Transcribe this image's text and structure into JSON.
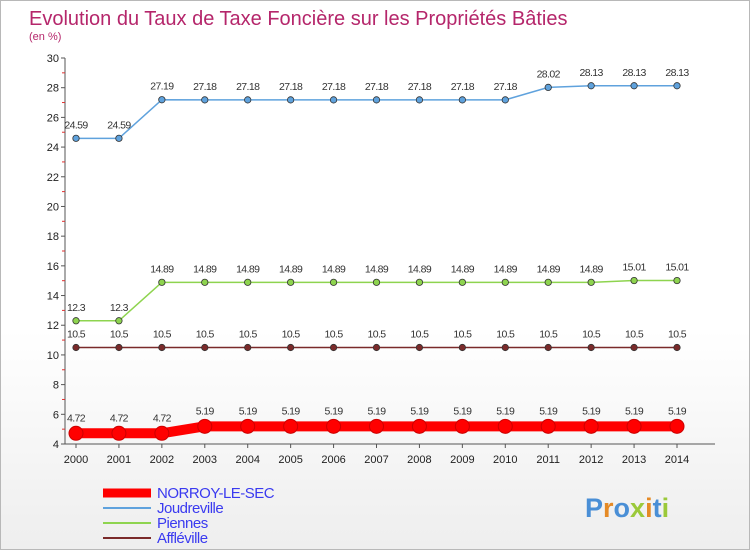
{
  "chart_data": {
    "type": "line",
    "title": "Evolution du Taux de Taxe Foncière sur les Propriétés Bâties",
    "subtitle": "(en %)",
    "xlabel": "",
    "ylabel": "(en %)",
    "ylim": [
      4,
      30
    ],
    "yticks": [
      4,
      6,
      8,
      10,
      12,
      14,
      16,
      18,
      20,
      22,
      24,
      26,
      28,
      30
    ],
    "categories": [
      "2000",
      "2001",
      "2002",
      "2003",
      "2004",
      "2005",
      "2006",
      "2007",
      "2008",
      "2009",
      "2010",
      "2011",
      "2012",
      "2013",
      "2014"
    ],
    "series": [
      {
        "name": "NORROY-LE-SEC",
        "color": "#ff0000",
        "values": [
          4.72,
          4.72,
          4.72,
          5.19,
          5.19,
          5.19,
          5.19,
          5.19,
          5.19,
          5.19,
          5.19,
          5.19,
          5.19,
          5.19,
          5.19
        ],
        "labels": [
          "4.72",
          "4.72",
          "4.72",
          "5.19",
          "5.19",
          "5.19",
          "5.19",
          "5.19",
          "5.19",
          "5.19",
          "5.19",
          "5.19",
          "5.19",
          "5.19",
          "5.19"
        ]
      },
      {
        "name": "Joudreville",
        "color": "#5fa2dd",
        "values": [
          24.59,
          24.59,
          27.19,
          27.18,
          27.18,
          27.18,
          27.18,
          27.18,
          27.18,
          27.18,
          27.18,
          28.02,
          28.13,
          28.13,
          28.13
        ],
        "labels": [
          "24.59",
          "24.59",
          "27.19",
          "27.18",
          "27.18",
          "27.18",
          "27.18",
          "27.18",
          "27.18",
          "27.18",
          "27.18",
          "28.02",
          "28.13",
          "28.13",
          "28.13"
        ]
      },
      {
        "name": "Piennes",
        "color": "#8ed44f",
        "values": [
          12.3,
          12.3,
          14.89,
          14.89,
          14.89,
          14.89,
          14.89,
          14.89,
          14.89,
          14.89,
          14.89,
          14.89,
          14.89,
          15.01,
          15.01
        ],
        "labels": [
          "12.3",
          "12.3",
          "14.89",
          "14.89",
          "14.89",
          "14.89",
          "14.89",
          "14.89",
          "14.89",
          "14.89",
          "14.89",
          "14.89",
          "14.89",
          "15.01",
          "15.01"
        ]
      },
      {
        "name": "Affléville",
        "color": "#7a2a2a",
        "values": [
          10.5,
          10.5,
          10.5,
          10.5,
          10.5,
          10.5,
          10.5,
          10.5,
          10.5,
          10.5,
          10.5,
          10.5,
          10.5,
          10.5,
          10.5
        ],
        "labels": [
          "10.5",
          "10.5",
          "10.5",
          "10.5",
          "10.5",
          "10.5",
          "10.5",
          "10.5",
          "10.5",
          "10.5",
          "10.5",
          "10.5",
          "10.5",
          "10.5",
          "10.5"
        ]
      }
    ],
    "legend_position": "bottom-left",
    "grid": false
  },
  "logo": {
    "letters": [
      "P",
      "r",
      "o",
      "x",
      "i",
      "t",
      "i"
    ],
    "colors": [
      "#4a8fd6",
      "#e58a25",
      "#4a8fd6",
      "#9bc93a",
      "#e58a25",
      "#4a8fd6",
      "#9bc93a"
    ]
  }
}
